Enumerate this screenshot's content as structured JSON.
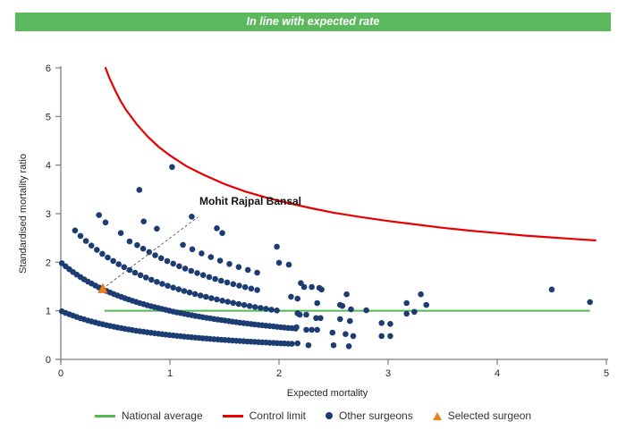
{
  "header": {
    "title": "In line with expected rate",
    "bg_color": "#5cb85c",
    "text_color": "#ffffff"
  },
  "chart_data": {
    "type": "scatter",
    "xlabel": "Expected mortality",
    "ylabel": "Standardised mortality ratio",
    "xlim": [
      0,
      5
    ],
    "ylim": [
      0,
      6
    ],
    "x_ticks": [
      0,
      1,
      2,
      3,
      4,
      5
    ],
    "y_ticks": [
      0,
      1,
      2,
      3,
      4,
      5,
      6
    ],
    "grid": "off",
    "axis_color": "#7f7f7f",
    "tick_label_color": "#262626",
    "national_average": {
      "label": "National average",
      "color": "#53b953",
      "y": 1.0,
      "x_start": 0.4,
      "x_end": 4.85
    },
    "control_limit": {
      "label": "Control limit",
      "color": "#e80000",
      "points": [
        [
          0.41,
          6.0
        ],
        [
          0.45,
          5.77
        ],
        [
          0.5,
          5.53
        ],
        [
          0.55,
          5.31
        ],
        [
          0.6,
          5.13
        ],
        [
          0.7,
          4.83
        ],
        [
          0.8,
          4.58
        ],
        [
          0.9,
          4.37
        ],
        [
          1.0,
          4.2
        ],
        [
          1.15,
          3.98
        ],
        [
          1.3,
          3.81
        ],
        [
          1.5,
          3.61
        ],
        [
          1.7,
          3.45
        ],
        [
          1.9,
          3.32
        ],
        [
          2.1,
          3.21
        ],
        [
          2.3,
          3.11
        ],
        [
          2.5,
          3.02
        ],
        [
          2.75,
          2.93
        ],
        [
          3.0,
          2.85
        ],
        [
          3.25,
          2.78
        ],
        [
          3.5,
          2.71
        ],
        [
          3.75,
          2.65
        ],
        [
          4.0,
          2.6
        ],
        [
          4.25,
          2.55
        ],
        [
          4.5,
          2.51
        ],
        [
          4.7,
          2.48
        ],
        [
          4.9,
          2.45
        ]
      ]
    },
    "other_surgeons": {
      "label": "Other surgeons",
      "color": "#1c3d73",
      "note": "dense chains follow SMR = deaths / (1 + expected mortality)",
      "bands": [
        {
          "deaths": 1,
          "x_from": 0.01,
          "x_to": 2.12,
          "x_step": 0.034
        },
        {
          "deaths": 2,
          "x_from": 0.01,
          "x_to": 2.18,
          "x_step": 0.034
        },
        {
          "deaths": 3,
          "x_from": 0.13,
          "x_to": 1.98,
          "x_step": 0.05
        },
        {
          "deaths": 4,
          "x_from": 0.7,
          "x_to": 1.84,
          "x_step": 0.055
        },
        {
          "deaths": 5,
          "x_from": 1.12,
          "x_to": 1.8,
          "x_step": 0.085
        }
      ],
      "points": [
        [
          0.35,
          2.97
        ],
        [
          0.41,
          2.82
        ],
        [
          0.55,
          2.6
        ],
        [
          0.63,
          2.43
        ],
        [
          0.72,
          3.49
        ],
        [
          0.76,
          2.84
        ],
        [
          0.88,
          2.69
        ],
        [
          1.02,
          3.96
        ],
        [
          1.2,
          2.94
        ],
        [
          1.43,
          2.7
        ],
        [
          1.48,
          2.6
        ],
        [
          1.98,
          2.32
        ],
        [
          2.0,
          1.99
        ],
        [
          2.09,
          1.95
        ],
        [
          2.11,
          1.29
        ],
        [
          2.17,
          1.25
        ],
        [
          2.17,
          0.95
        ],
        [
          2.2,
          1.57
        ],
        [
          2.23,
          1.49
        ],
        [
          2.3,
          1.49
        ],
        [
          2.37,
          1.47
        ],
        [
          2.39,
          1.44
        ],
        [
          2.35,
          1.16
        ],
        [
          2.19,
          0.92
        ],
        [
          2.25,
          0.92
        ],
        [
          2.34,
          0.85
        ],
        [
          2.38,
          0.85
        ],
        [
          2.16,
          0.66
        ],
        [
          2.25,
          0.61
        ],
        [
          2.3,
          0.61
        ],
        [
          2.35,
          0.61
        ],
        [
          2.17,
          0.33
        ],
        [
          2.27,
          0.29
        ],
        [
          2.49,
          0.55
        ],
        [
          2.5,
          0.29
        ],
        [
          2.56,
          1.12
        ],
        [
          2.58,
          1.1
        ],
        [
          2.62,
          1.34
        ],
        [
          2.66,
          1.03
        ],
        [
          2.56,
          0.83
        ],
        [
          2.65,
          0.79
        ],
        [
          2.61,
          0.52
        ],
        [
          2.68,
          0.48
        ],
        [
          2.64,
          0.27
        ],
        [
          2.8,
          1.01
        ],
        [
          2.94,
          0.75
        ],
        [
          3.02,
          0.73
        ],
        [
          2.94,
          0.48
        ],
        [
          3.02,
          0.48
        ],
        [
          3.17,
          1.16
        ],
        [
          3.24,
          0.98
        ],
        [
          3.17,
          0.94
        ],
        [
          3.3,
          1.34
        ],
        [
          3.35,
          1.12
        ],
        [
          4.5,
          1.44
        ],
        [
          4.85,
          1.18
        ]
      ]
    },
    "selected_surgeon": {
      "label": "Selected surgeon",
      "name": "Mohit Rajpal Bansal",
      "x": 0.385,
      "y": 1.44,
      "color": "#f0821e",
      "edge_color": "#d8690e"
    }
  },
  "legend": {
    "items": [
      {
        "label": "National average"
      },
      {
        "label": "Control limit"
      },
      {
        "label": "Other surgeons"
      },
      {
        "label": "Selected surgeon"
      }
    ]
  }
}
